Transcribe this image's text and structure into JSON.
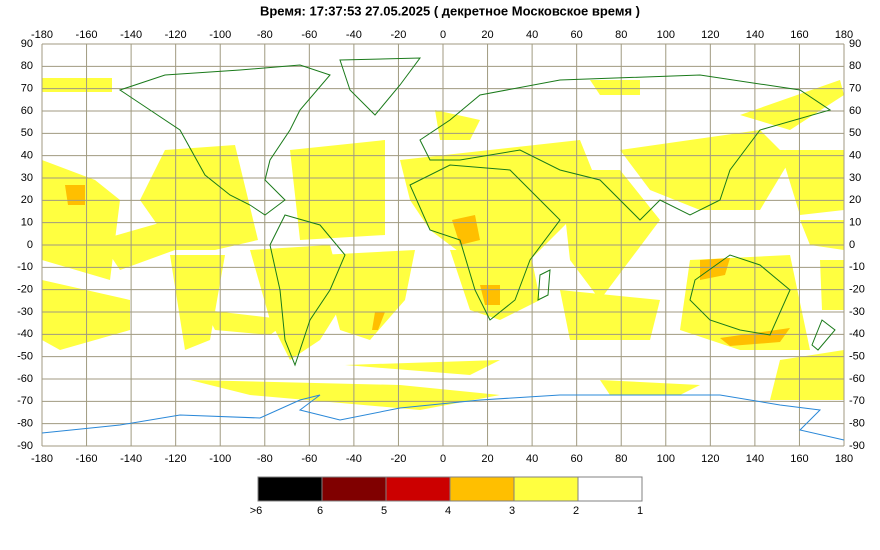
{
  "title": "Время: 17:37:53   27.05.2025  ( декретное Московское время )",
  "map": {
    "xticks": [
      -180,
      -160,
      -140,
      -120,
      -100,
      -80,
      -60,
      -40,
      -20,
      0,
      20,
      40,
      60,
      80,
      100,
      120,
      140,
      160,
      180
    ],
    "yticks": [
      90,
      80,
      70,
      60,
      50,
      40,
      30,
      20,
      10,
      0,
      -10,
      -20,
      -30,
      -40,
      -50,
      -60,
      -70,
      -80,
      -90
    ],
    "legend": {
      "colors": [
        "#000000",
        "#800000",
        "#cc0000",
        "#ffbf00",
        "#ffff40",
        "#ffffff"
      ],
      "labels": [
        ">6",
        "6",
        "5",
        "4",
        "3",
        "2",
        "1"
      ]
    }
  }
}
